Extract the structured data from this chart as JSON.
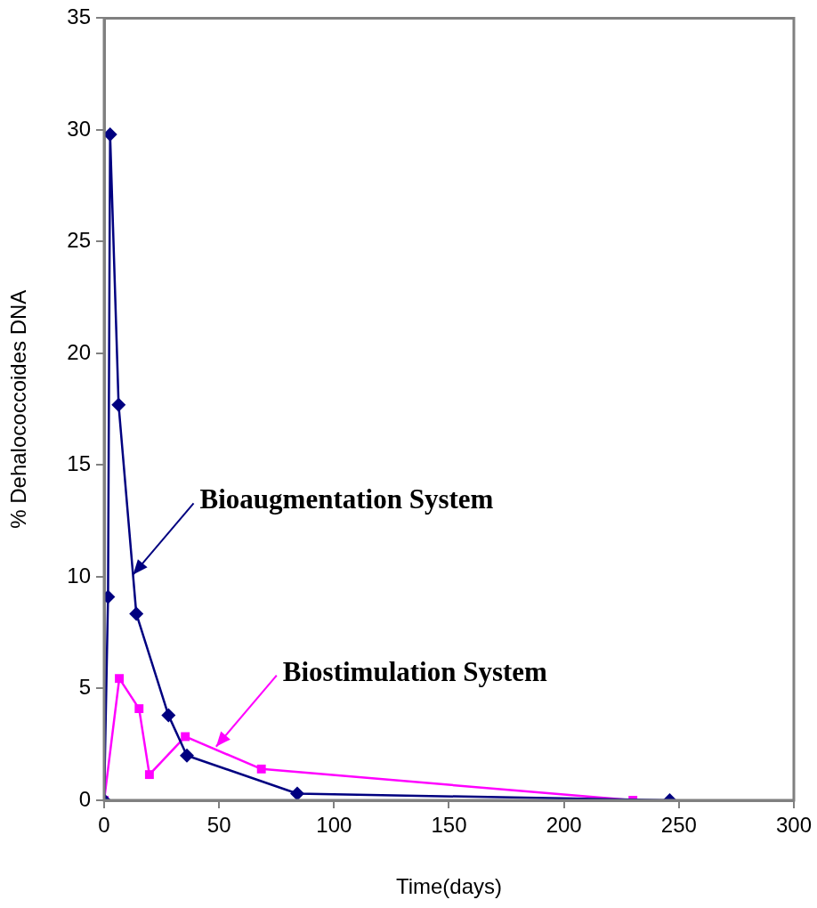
{
  "chart_data": {
    "type": "line",
    "xlabel": "Time(days)",
    "ylabel": "% Dehalococcoides DNA",
    "xlim": [
      0,
      300
    ],
    "xticks": [
      0,
      50,
      100,
      150,
      200,
      250,
      300
    ],
    "ylim": [
      0,
      35
    ],
    "yticks": [
      0,
      5,
      10,
      15,
      20,
      25,
      30,
      35
    ],
    "grid": false,
    "legend": false,
    "line_style": "solid",
    "series": [
      {
        "color": "#000080",
        "marker": "diamond",
        "x": [
          0,
          1.7,
          2.6,
          6.3,
          14,
          28,
          36,
          84,
          246
        ],
        "values": [
          0,
          9.1,
          29.8,
          17.7,
          8.35,
          3.8,
          2.0,
          0.3,
          0
        ]
      },
      {
        "color": "#ff00ff",
        "marker": "square",
        "x": [
          0,
          6.6,
          15.2,
          19.7,
          35.3,
          68.4,
          230
        ],
        "values": [
          0,
          5.45,
          4.1,
          1.15,
          2.85,
          1.4,
          0
        ]
      }
    ],
    "annotations": [
      {
        "text": "Bioaugmentation System",
        "x": 12.6,
        "y": 10.1
      },
      {
        "text": "Biostimulation System",
        "x": 48.7,
        "y": 2.4
      }
    ]
  }
}
